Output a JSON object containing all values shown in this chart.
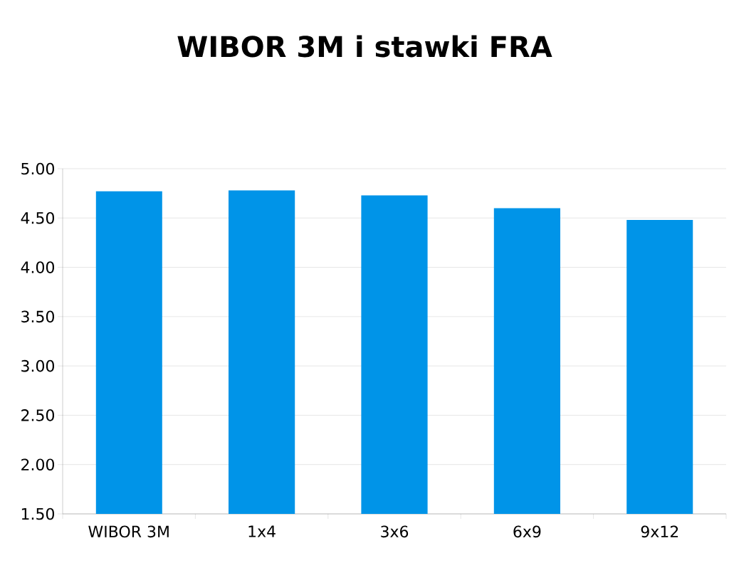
{
  "chart_data": {
    "type": "bar",
    "title": "WIBOR 3M i stawki FRA",
    "categories": [
      "WIBOR 3M",
      "1x4",
      "3x6",
      "6x9",
      "9x12"
    ],
    "values": [
      4.77,
      4.78,
      4.73,
      4.6,
      4.48
    ],
    "color": "#0094e8",
    "ylim": [
      1.5,
      5.0
    ],
    "yticks": [
      {
        "value": 1.5,
        "label": "1.50"
      },
      {
        "value": 2.0,
        "label": "2.00"
      },
      {
        "value": 2.5,
        "label": "2.50"
      },
      {
        "value": 3.0,
        "label": "3.00"
      },
      {
        "value": 3.5,
        "label": "3.50"
      },
      {
        "value": 4.0,
        "label": "4.00"
      },
      {
        "value": 4.5,
        "label": "4.50"
      },
      {
        "value": 5.0,
        "label": "5.00"
      }
    ],
    "grid": "y"
  }
}
